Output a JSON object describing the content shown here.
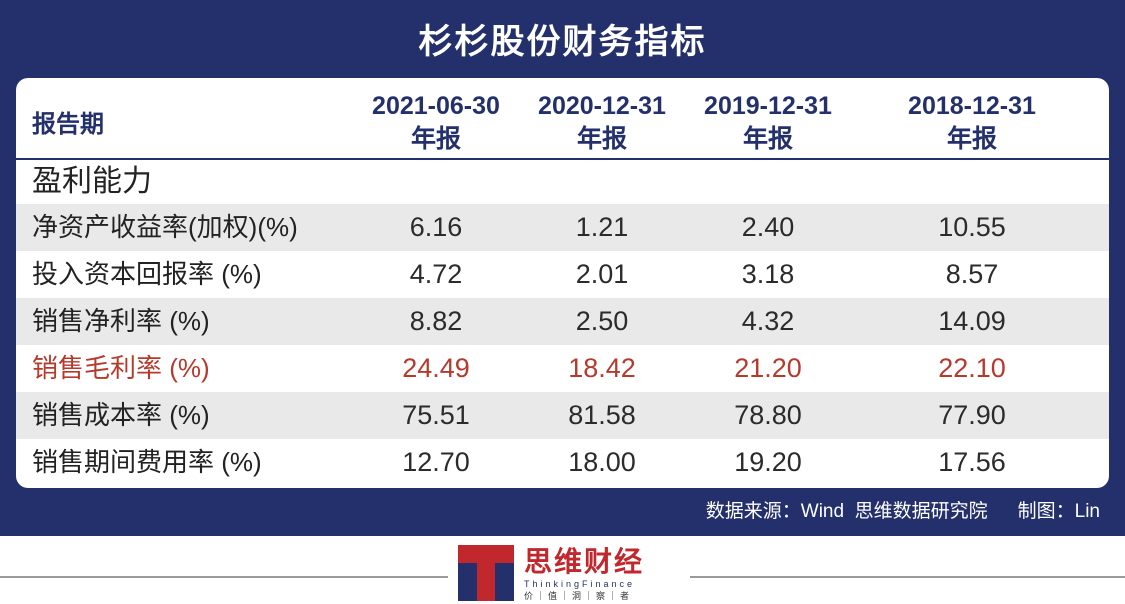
{
  "title": "杉杉股份财务指标",
  "table": {
    "header_label": "报告期",
    "columns": [
      {
        "date": "2021-06-30",
        "type": "年报"
      },
      {
        "date": "2020-12-31",
        "type": "年报"
      },
      {
        "date": "2019-12-31",
        "type": "年报"
      },
      {
        "date": "2018-12-31",
        "type": "年报"
      }
    ],
    "section": "盈利能力",
    "rows": [
      {
        "label": "净资产收益率(加权)(%)",
        "values": [
          "6.16",
          "1.21",
          "2.40",
          "10.55"
        ]
      },
      {
        "label": "投入资本回报率 (%)",
        "values": [
          "4.72",
          "2.01",
          "3.18",
          "8.57"
        ]
      },
      {
        "label": "销售净利率 (%)",
        "values": [
          "8.82",
          "2.50",
          "4.32",
          "14.09"
        ]
      },
      {
        "label": "销售毛利率 (%)",
        "values": [
          "24.49",
          "18.42",
          "21.20",
          "22.10"
        ]
      },
      {
        "label": "销售成本率 (%)",
        "values": [
          "75.51",
          "81.58",
          "78.80",
          "77.90"
        ]
      },
      {
        "label": "销售期间费用率 (%)",
        "values": [
          "12.70",
          "18.00",
          "19.20",
          "17.56"
        ]
      }
    ]
  },
  "footer": {
    "source": "数据来源：Wind  思维数据研究院",
    "credit": "制图：Lin"
  },
  "logo": {
    "name": "思维财经",
    "english": "ThinkingFinance",
    "slogan": "价｜值｜洞｜察｜者"
  },
  "colors": {
    "panel": "#23306b",
    "highlight": "#b63a2c",
    "row_shade": "#e9e9e9",
    "logo_red": "#c0282d"
  }
}
